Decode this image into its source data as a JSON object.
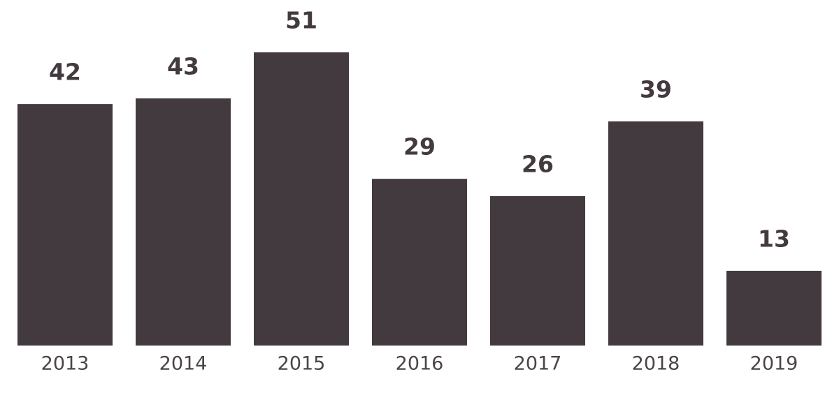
{
  "chart_data": {
    "type": "bar",
    "categories": [
      "2013",
      "2014",
      "2015",
      "2016",
      "2017",
      "2018",
      "2019"
    ],
    "values": [
      42,
      43,
      51,
      29,
      26,
      39,
      13
    ],
    "color": "#433a40"
  }
}
